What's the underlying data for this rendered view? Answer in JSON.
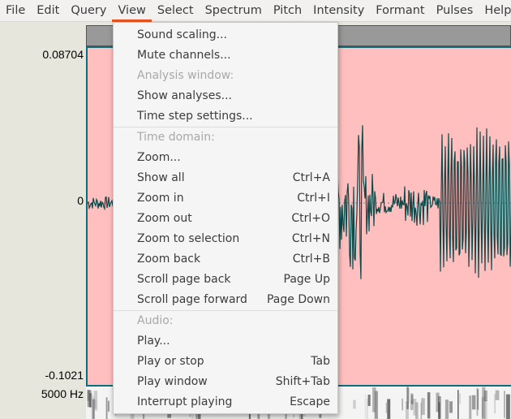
{
  "menubar": {
    "items": [
      {
        "label": "File"
      },
      {
        "label": "Edit"
      },
      {
        "label": "Query"
      },
      {
        "label": "View"
      },
      {
        "label": "Select"
      },
      {
        "label": "Spectrum"
      },
      {
        "label": "Pitch"
      },
      {
        "label": "Intensity"
      },
      {
        "label": "Formant"
      },
      {
        "label": "Pulses"
      },
      {
        "label": "Help"
      }
    ],
    "active": "View"
  },
  "axis": {
    "max_label": "0.08704",
    "zero_label": "0",
    "min_label": "-0.1021",
    "freq_label": "5000 Hz"
  },
  "view_menu": {
    "items": [
      {
        "label": "Sound scaling...",
        "shortcut": "",
        "enabled": true
      },
      {
        "label": "Mute channels...",
        "shortcut": "",
        "enabled": true
      },
      {
        "label": "Analysis window:",
        "shortcut": "",
        "enabled": false
      },
      {
        "label": "Show analyses...",
        "shortcut": "",
        "enabled": true
      },
      {
        "label": "Time step settings...",
        "shortcut": "",
        "enabled": true
      },
      {
        "label": "Time domain:",
        "shortcut": "",
        "enabled": false
      },
      {
        "label": "Zoom...",
        "shortcut": "",
        "enabled": true
      },
      {
        "label": "Show all",
        "shortcut": "Ctrl+A",
        "enabled": true
      },
      {
        "label": "Zoom in",
        "shortcut": "Ctrl+I",
        "enabled": true
      },
      {
        "label": "Zoom out",
        "shortcut": "Ctrl+O",
        "enabled": true
      },
      {
        "label": "Zoom to selection",
        "shortcut": "Ctrl+N",
        "enabled": true
      },
      {
        "label": "Zoom back",
        "shortcut": "Ctrl+B",
        "enabled": true
      },
      {
        "label": "Scroll page back",
        "shortcut": "Page Up",
        "enabled": true
      },
      {
        "label": "Scroll page forward",
        "shortcut": "Page Down",
        "enabled": true
      },
      {
        "label": "Audio:",
        "shortcut": "",
        "enabled": false
      },
      {
        "label": "Play...",
        "shortcut": "",
        "enabled": true
      },
      {
        "label": "Play or stop",
        "shortcut": "Tab",
        "enabled": true
      },
      {
        "label": "Play window",
        "shortcut": "Shift+Tab",
        "enabled": true
      },
      {
        "label": "Interrupt playing",
        "shortcut": "Escape",
        "enabled": true
      }
    ]
  },
  "colors": {
    "accent": "#e95420",
    "waveform": "#0c4a4a",
    "signal_bg": "#ffbfbf"
  }
}
